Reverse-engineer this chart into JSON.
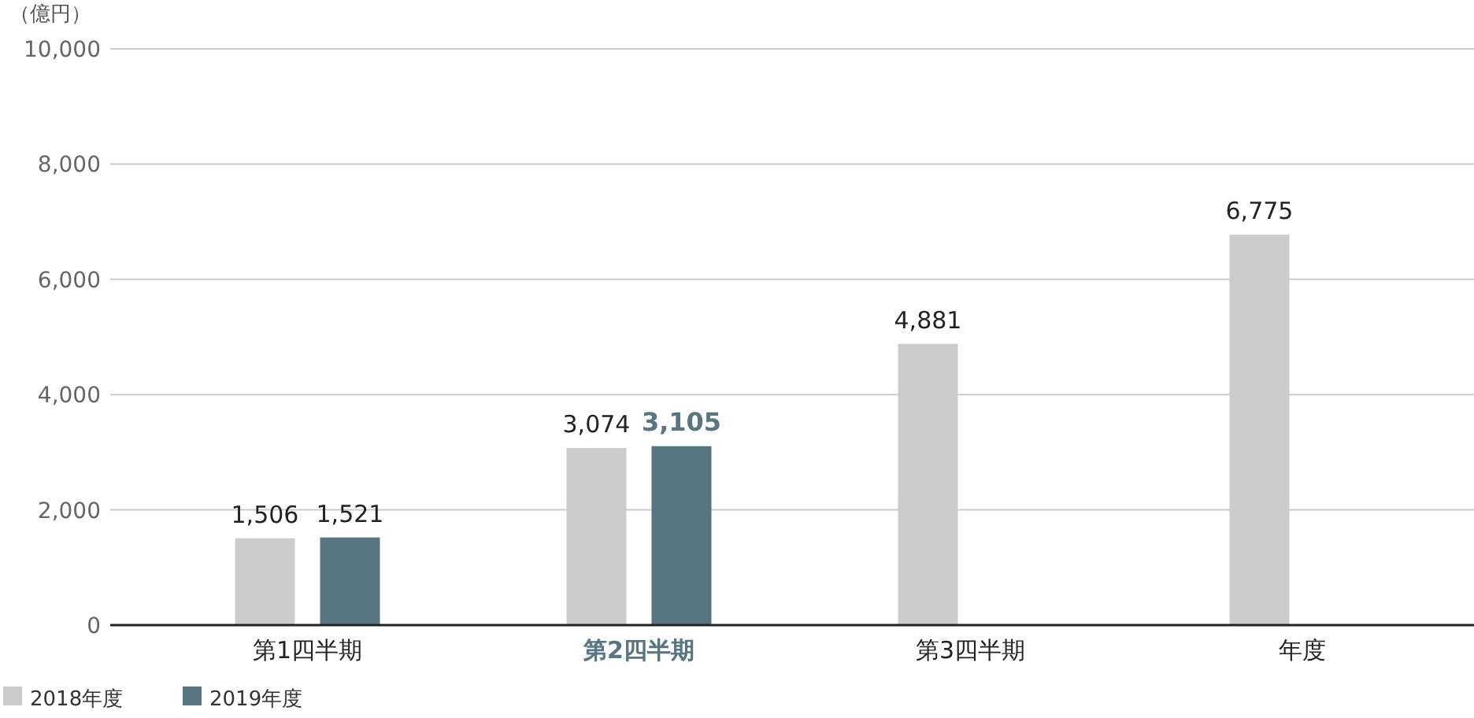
{
  "chart_data": {
    "type": "bar",
    "ylabel": "（億円）",
    "categories": [
      "第1四半期",
      "第2四半期",
      "第3四半期",
      "年度"
    ],
    "series": [
      {
        "name": "2018年度",
        "color": "#cccccc",
        "values": [
          1506,
          3074,
          4881,
          6775
        ],
        "value_labels": [
          "1,506",
          "3,074",
          "4,881",
          "6,775"
        ]
      },
      {
        "name": "2019年度",
        "color": "#587682",
        "values": [
          1521,
          3105,
          null,
          null
        ],
        "value_labels": [
          "1,521",
          "3,105",
          null,
          null
        ]
      }
    ],
    "ylim": [
      0,
      10000
    ],
    "yticks": [
      0,
      {
        "value": 2000,
        "label": "2,000"
      },
      {
        "value": 4000,
        "label": "4,000"
      },
      {
        "value": 6000,
        "label": "6,000"
      },
      {
        "value": 8000,
        "label": "8,000"
      },
      {
        "value": 10000,
        "label": "10,000"
      }
    ],
    "grid": "y",
    "legend": "bottom left"
  }
}
